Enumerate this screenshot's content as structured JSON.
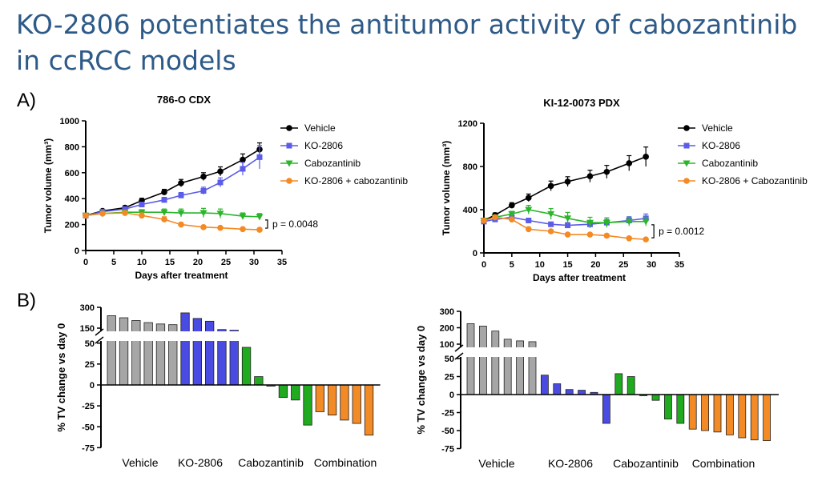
{
  "title": "KO-2806 potentiates the antitumor activity of cabozantinib in ccRCC models",
  "panel_labels": [
    "A)",
    "B)"
  ],
  "colors": {
    "title": "#2e5a88",
    "vehicle": "#000000",
    "ko2806": "#5b5ce8",
    "cabozantinib": "#2bb52b",
    "combination": "#f48a24",
    "vehicle_bar": "#a6a6a6",
    "ko2806_bar": "#4a4be3",
    "cabozantinib_bar": "#1faa1f",
    "combination_bar": "#f28a26"
  },
  "chart_data": [
    {
      "type": "line",
      "title": "786-O CDX",
      "xlabel": "Days after treatment",
      "ylabel": "Tumor volume (mm³)",
      "xlim": [
        0,
        35
      ],
      "ylim": [
        0,
        1000
      ],
      "xticks": [
        0,
        5,
        10,
        15,
        20,
        25,
        30,
        35
      ],
      "yticks": [
        0,
        200,
        400,
        600,
        800,
        1000
      ],
      "legend_position": "top-right",
      "annotation": "p = 0.0048",
      "series": [
        {
          "name": "Vehicle",
          "color": "#000000",
          "marker": "circle",
          "x": [
            0,
            3,
            7,
            10,
            14,
            17,
            21,
            24,
            28,
            31
          ],
          "y": [
            270,
            305,
            330,
            385,
            450,
            520,
            570,
            610,
            700,
            780
          ],
          "err": [
            10,
            12,
            15,
            18,
            22,
            28,
            30,
            35,
            45,
            50
          ]
        },
        {
          "name": "KO-2806",
          "color": "#5b5ce8",
          "marker": "square",
          "x": [
            0,
            3,
            7,
            10,
            14,
            17,
            21,
            24,
            28,
            31
          ],
          "y": [
            270,
            300,
            320,
            355,
            390,
            425,
            460,
            525,
            630,
            720
          ],
          "err": [
            10,
            12,
            15,
            18,
            20,
            22,
            28,
            35,
            50,
            90
          ]
        },
        {
          "name": "Cabozantinib",
          "color": "#2bb52b",
          "marker": "triangle-down",
          "x": [
            0,
            3,
            7,
            10,
            14,
            17,
            21,
            24,
            28,
            31
          ],
          "y": [
            270,
            285,
            295,
            295,
            295,
            290,
            290,
            285,
            265,
            260
          ],
          "err": [
            10,
            12,
            15,
            20,
            25,
            30,
            35,
            35,
            25,
            25
          ]
        },
        {
          "name": "KO-2806 + cabozantinib",
          "color": "#f48a24",
          "marker": "circle",
          "x": [
            0,
            3,
            7,
            10,
            14,
            17,
            21,
            24,
            28,
            31
          ],
          "y": [
            270,
            285,
            290,
            270,
            240,
            200,
            180,
            175,
            165,
            160
          ],
          "err": [
            10,
            12,
            15,
            20,
            20,
            15,
            12,
            10,
            10,
            10
          ]
        }
      ]
    },
    {
      "type": "line",
      "title": "KI-12-0073 PDX",
      "xlabel": "Days after treatment",
      "ylabel": "Tumor volume (mm³)",
      "xlim": [
        0,
        35
      ],
      "ylim": [
        0,
        1200
      ],
      "xticks": [
        0,
        5,
        10,
        15,
        20,
        25,
        30,
        35
      ],
      "yticks": [
        0,
        400,
        800,
        1200
      ],
      "legend_position": "top-right",
      "annotation": "p = 0.0012",
      "series": [
        {
          "name": "Vehicle",
          "color": "#000000",
          "marker": "circle",
          "x": [
            0,
            2,
            5,
            8,
            12,
            15,
            19,
            22,
            26,
            29
          ],
          "y": [
            300,
            350,
            440,
            510,
            620,
            660,
            710,
            750,
            830,
            890
          ],
          "err": [
            15,
            20,
            25,
            35,
            45,
            45,
            55,
            60,
            70,
            90
          ]
        },
        {
          "name": "KO-2806",
          "color": "#5b5ce8",
          "marker": "square",
          "x": [
            0,
            2,
            5,
            8,
            12,
            15,
            19,
            22,
            26,
            29
          ],
          "y": [
            290,
            310,
            330,
            300,
            265,
            255,
            265,
            280,
            300,
            320
          ],
          "err": [
            15,
            18,
            20,
            20,
            20,
            25,
            25,
            30,
            35,
            40
          ]
        },
        {
          "name": "Cabozantinib",
          "color": "#2bb52b",
          "marker": "triangle-down",
          "x": [
            0,
            2,
            5,
            8,
            12,
            15,
            19,
            22,
            26,
            29
          ],
          "y": [
            300,
            330,
            360,
            400,
            360,
            320,
            280,
            280,
            290,
            290
          ],
          "err": [
            15,
            20,
            25,
            40,
            50,
            55,
            50,
            45,
            40,
            40
          ]
        },
        {
          "name": "KO-2806 + Cabozantinib",
          "color": "#f48a24",
          "marker": "circle",
          "x": [
            0,
            2,
            5,
            8,
            12,
            15,
            19,
            22,
            26,
            29
          ],
          "y": [
            300,
            330,
            310,
            220,
            200,
            170,
            170,
            160,
            135,
            125
          ],
          "err": [
            15,
            15,
            20,
            15,
            15,
            12,
            12,
            12,
            10,
            10
          ]
        }
      ]
    },
    {
      "type": "bar",
      "title": "",
      "ylabel": "% TV change vs day 0",
      "xlabel": "",
      "broken_axis": true,
      "yticks": [
        -75,
        -50,
        -25,
        0,
        25,
        50,
        150,
        300
      ],
      "group_labels": [
        "Vehicle",
        "KO-2806",
        "Cabozantinib",
        "Combination"
      ],
      "groups": [
        {
          "name": "Vehicle",
          "color": "#a6a6a6",
          "values": [
            240,
            225,
            205,
            190,
            180,
            175
          ]
        },
        {
          "name": "KO-2806",
          "color": "#4a4be3",
          "values": [
            260,
            220,
            200,
            140,
            135
          ]
        },
        {
          "name": "Cabozantinib",
          "color": "#1faa1f",
          "values": [
            45,
            10,
            -1,
            -15,
            -18,
            -48
          ]
        },
        {
          "name": "Combination",
          "color": "#f28a26",
          "values": [
            -32,
            -36,
            -42,
            -46,
            -60
          ]
        }
      ]
    },
    {
      "type": "bar",
      "title": "",
      "ylabel": "% TV change vs day 0",
      "xlabel": "",
      "broken_axis": true,
      "yticks": [
        -75,
        -50,
        -25,
        0,
        25,
        50,
        100,
        200,
        300
      ],
      "group_labels": [
        "Vehicle",
        "KO-2806",
        "Cabozantinib",
        "Combination"
      ],
      "groups": [
        {
          "name": "Vehicle",
          "color": "#a6a6a6",
          "values": [
            225,
            210,
            180,
            130,
            120,
            115
          ]
        },
        {
          "name": "KO-2806",
          "color": "#4a4be3",
          "values": [
            27,
            15,
            7,
            6,
            3,
            -40
          ]
        },
        {
          "name": "Cabozantinib",
          "color": "#1faa1f",
          "values": [
            29,
            25,
            -1,
            -8,
            -34,
            -40
          ]
        },
        {
          "name": "Combination",
          "color": "#f28a26",
          "values": [
            -48,
            -50,
            -52,
            -56,
            -60,
            -63,
            -64
          ]
        }
      ]
    }
  ]
}
